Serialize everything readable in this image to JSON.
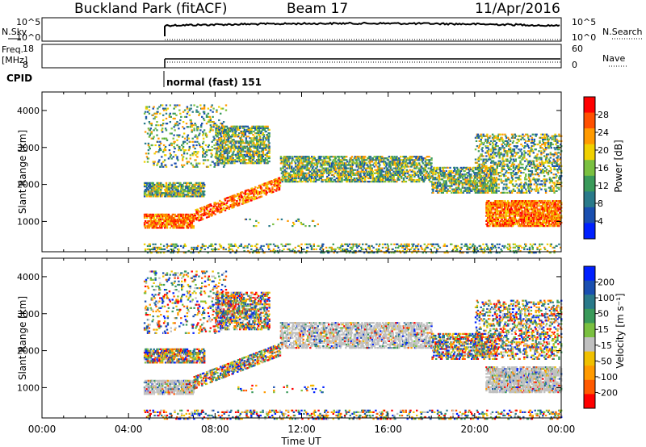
{
  "header": {
    "title": "Buckland Park (fitACF)",
    "beam": "Beam 17",
    "date": "11/Apr/2016"
  },
  "top_panels": {
    "nsky_label": "N.Sky",
    "nsky_hi": "10^5",
    "nsky_lo": "10^0",
    "nsearch_label": "N.Search",
    "freq_label_1": "Freq.",
    "freq_label_2": "[MHz]",
    "freq_hi": "18",
    "freq_lo": "8",
    "nave_label": "Nave",
    "nave_hi": "60",
    "nave_lo": "0",
    "cpid_label": "CPID",
    "cpid_value": "normal (fast) 151"
  },
  "colors": {
    "power_scale": [
      "#0020ff",
      "#1a4fb0",
      "#2a7a8a",
      "#3a9a5a",
      "#7ac040",
      "#f0d000",
      "#ff9a00",
      "#ff5000",
      "#ff0000"
    ],
    "velocity_scale": [
      "#ff0000",
      "#ff5a00",
      "#ff9a00",
      "#f0c000",
      "#c0c0c0",
      "#7ac040",
      "#3a9a5a",
      "#2a7a8a",
      "#1a4fb0",
      "#0020ff"
    ]
  },
  "chart_data": [
    {
      "type": "heatmap",
      "panel": "power",
      "ylabel": "Slant Range [km]",
      "xlabel": "Time UT",
      "x_ticks": [
        "00:00",
        "04:00",
        "08:00",
        "12:00",
        "16:00",
        "20:00",
        "00:00"
      ],
      "y_ticks": [
        1000,
        2000,
        3000,
        4000
      ],
      "ylim": [
        180,
        4500
      ],
      "xlim_hours": [
        0,
        24
      ],
      "colorbar_label": "Power [dB]",
      "colorbar_ticks": [
        4,
        8,
        12,
        16,
        20,
        24,
        28
      ]
    },
    {
      "type": "heatmap",
      "panel": "velocity",
      "ylabel": "Slant Range [km]",
      "xlabel": "Time UT",
      "x_ticks": [
        "00:00",
        "04:00",
        "08:00",
        "12:00",
        "16:00",
        "20:00",
        "00:00"
      ],
      "y_ticks": [
        1000,
        2000,
        3000,
        4000
      ],
      "ylim": [
        180,
        4500
      ],
      "xlim_hours": [
        0,
        24
      ],
      "colorbar_label": "Velocity [m s⁻¹]",
      "colorbar_ticks": [
        "200",
        "100",
        "50",
        "15",
        "-15",
        "-50",
        "-100",
        "-200"
      ]
    }
  ]
}
